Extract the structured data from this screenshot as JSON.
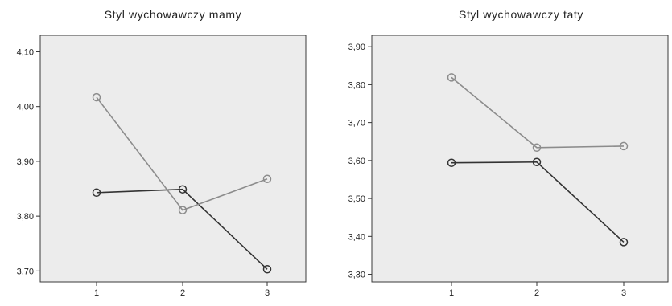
{
  "chart_data": [
    {
      "type": "line",
      "title": "Styl wychowawczy mamy",
      "xlabel": "",
      "ylabel": "",
      "categories": [
        "1",
        "2",
        "3"
      ],
      "ylim": [
        3.68,
        4.13
      ],
      "yticks": [
        "3,70",
        "3,80",
        "3,90",
        "4,00",
        "4,10"
      ],
      "ytick_values": [
        3.7,
        3.8,
        3.9,
        4.0,
        4.1
      ],
      "grid": false,
      "series": [
        {
          "values": [
            3.843,
            3.849,
            3.703
          ],
          "color": "#333333"
        },
        {
          "values": [
            4.017,
            3.811,
            3.868
          ],
          "color": "#8c8c8c"
        }
      ]
    },
    {
      "type": "line",
      "title": "Styl wychowawczy taty",
      "xlabel": "",
      "ylabel": "",
      "categories": [
        "1",
        "2",
        "3"
      ],
      "ylim": [
        3.28,
        3.93
      ],
      "yticks": [
        "3,30",
        "3,40",
        "3,50",
        "3,60",
        "3,70",
        "3,80",
        "3,90"
      ],
      "ytick_values": [
        3.3,
        3.4,
        3.5,
        3.6,
        3.7,
        3.8,
        3.9
      ],
      "grid": false,
      "series": [
        {
          "values": [
            3.594,
            3.596,
            3.385
          ],
          "color": "#333333"
        },
        {
          "values": [
            3.819,
            3.634,
            3.638
          ],
          "color": "#8c8c8c"
        }
      ]
    }
  ]
}
